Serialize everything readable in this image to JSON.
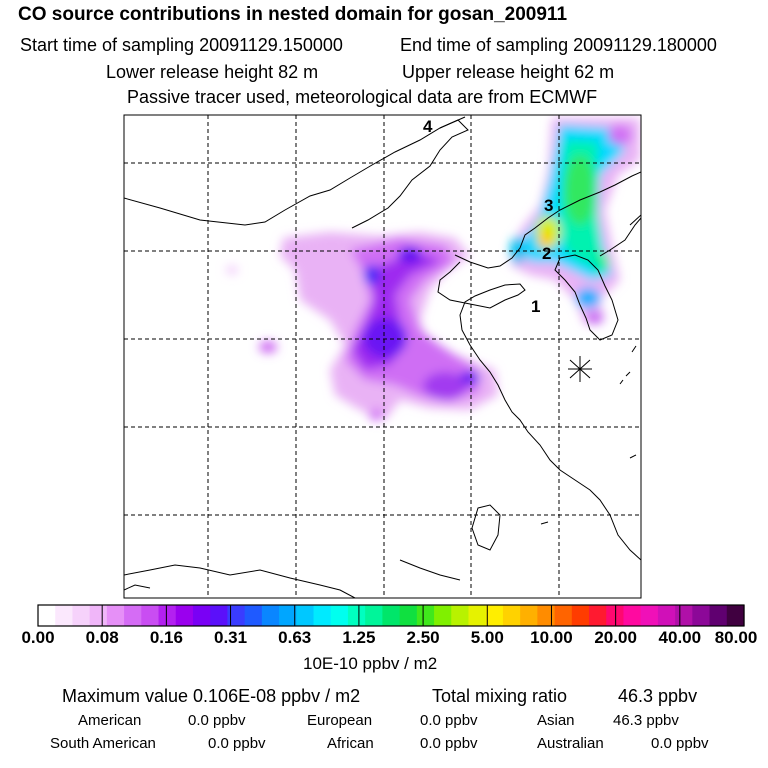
{
  "header": {
    "title": "CO  source contributions in nested domain for gosan_200911",
    "start_time": "Start time of sampling 20091129.150000",
    "end_time": "End time of sampling 20091129.180000",
    "lower_height": "Lower release height   82 m",
    "upper_height": "Upper release height   62 m",
    "tracer_note": "Passive tracer used, meteorological data are from ECMWF"
  },
  "map": {
    "labels": [
      "4",
      "3",
      "2",
      "1"
    ]
  },
  "colorbar": {
    "tick_labels": [
      "0.00",
      "0.08",
      "0.16",
      "0.31",
      "0.63",
      "1.25",
      "2.50",
      "5.00",
      "10.00",
      "20.00",
      "40.00",
      "80.00"
    ],
    "unit": "10E-10 ppbv / m2",
    "colors": [
      "#ffffff",
      "#fbe8fd",
      "#f6d2fb",
      "#f0b6f9",
      "#e690f7",
      "#d56cf5",
      "#c94df2",
      "#b320f0",
      "#9a00ee",
      "#7a00f5",
      "#5b10fa",
      "#3a3cff",
      "#1f5aff",
      "#0a86ff",
      "#00a6ff",
      "#00c8ff",
      "#00eaff",
      "#00ffef",
      "#00ffc0",
      "#00f59a",
      "#00e66a",
      "#10e040",
      "#40e81c",
      "#80f000",
      "#b8f200",
      "#e6f200",
      "#ffee00",
      "#ffd200",
      "#ffb000",
      "#ff8c00",
      "#ff6400",
      "#ff3c00",
      "#ff1a30",
      "#ff0870",
      "#ff0aa0",
      "#f010b8",
      "#d010b8",
      "#b010a8",
      "#8c0898",
      "#600070",
      "#400040"
    ]
  },
  "summary": {
    "max_value": "Maximum value  0.106E-08 ppbv / m2",
    "total_mixing": "Total mixing ratio",
    "total_value": "46.3 ppbv",
    "american_label": "American",
    "american_value": "0.0 ppbv",
    "european_label": "European",
    "european_value": "0.0 ppbv",
    "asian_label": "Asian",
    "asian_value": "46.3 ppbv",
    "south_american_label": "South American",
    "south_american_value": "0.0 ppbv",
    "african_label": "African",
    "african_value": "0.0 ppbv",
    "australian_label": "Australian",
    "australian_value": "0.0 ppbv"
  }
}
